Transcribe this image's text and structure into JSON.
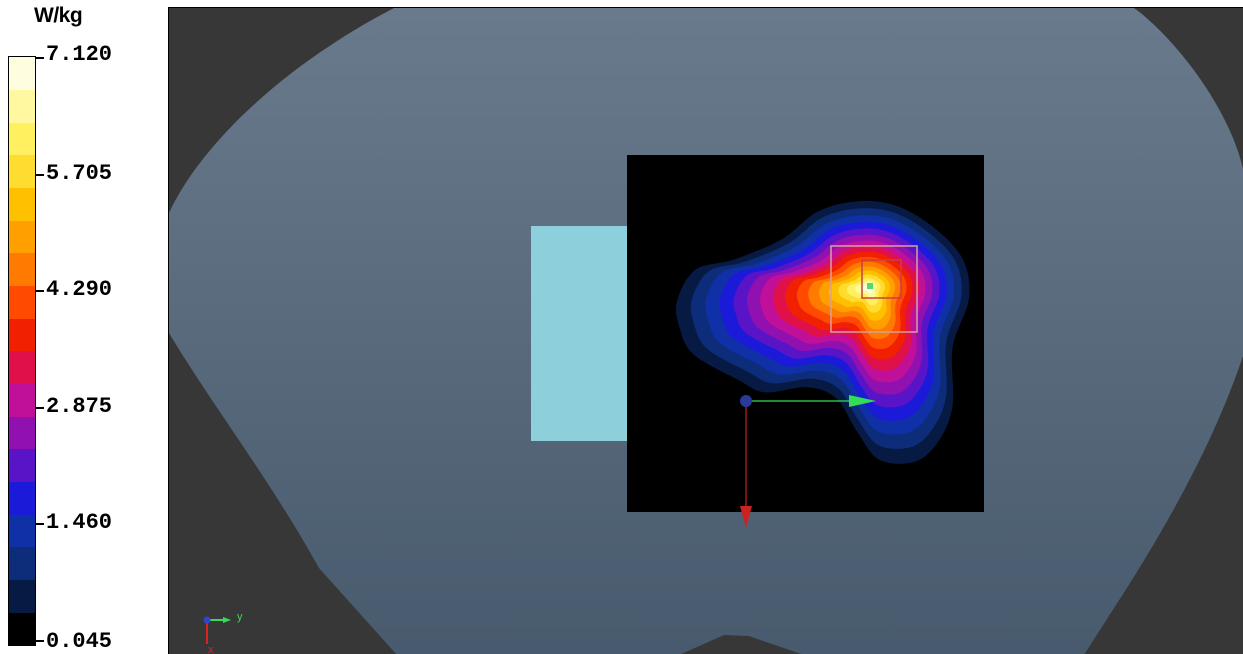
{
  "legend": {
    "unit": "W/kg",
    "tick_labels": [
      "7.120",
      "5.705",
      "4.290",
      "2.875",
      "1.460",
      "0.045"
    ],
    "colors": [
      "#000000",
      "#061a44",
      "#0d2d7a",
      "#1030a8",
      "#1a1ad8",
      "#5a14c8",
      "#9010b0",
      "#c0109a",
      "#e0104a",
      "#f02000",
      "#ff4a00",
      "#ff7a00",
      "#ffa000",
      "#ffc000",
      "#ffdc30",
      "#fff060",
      "#fff8a0",
      "#fffde0"
    ]
  },
  "viewport": {
    "background": "#373737",
    "phantom_color_top": "#697a8c",
    "phantom_color_bottom": "#485a6d",
    "antenna_color": "#8ecfdc",
    "scan_area_color": "#000000"
  },
  "axes_triad": {
    "y_label": "y",
    "x_label": "x"
  },
  "device_axes": {
    "x_color": "#cc2222",
    "y_color": "#33dd55",
    "origin_color": "#2a3a9a"
  },
  "hotspot": {
    "peak_value": 7.12
  }
}
